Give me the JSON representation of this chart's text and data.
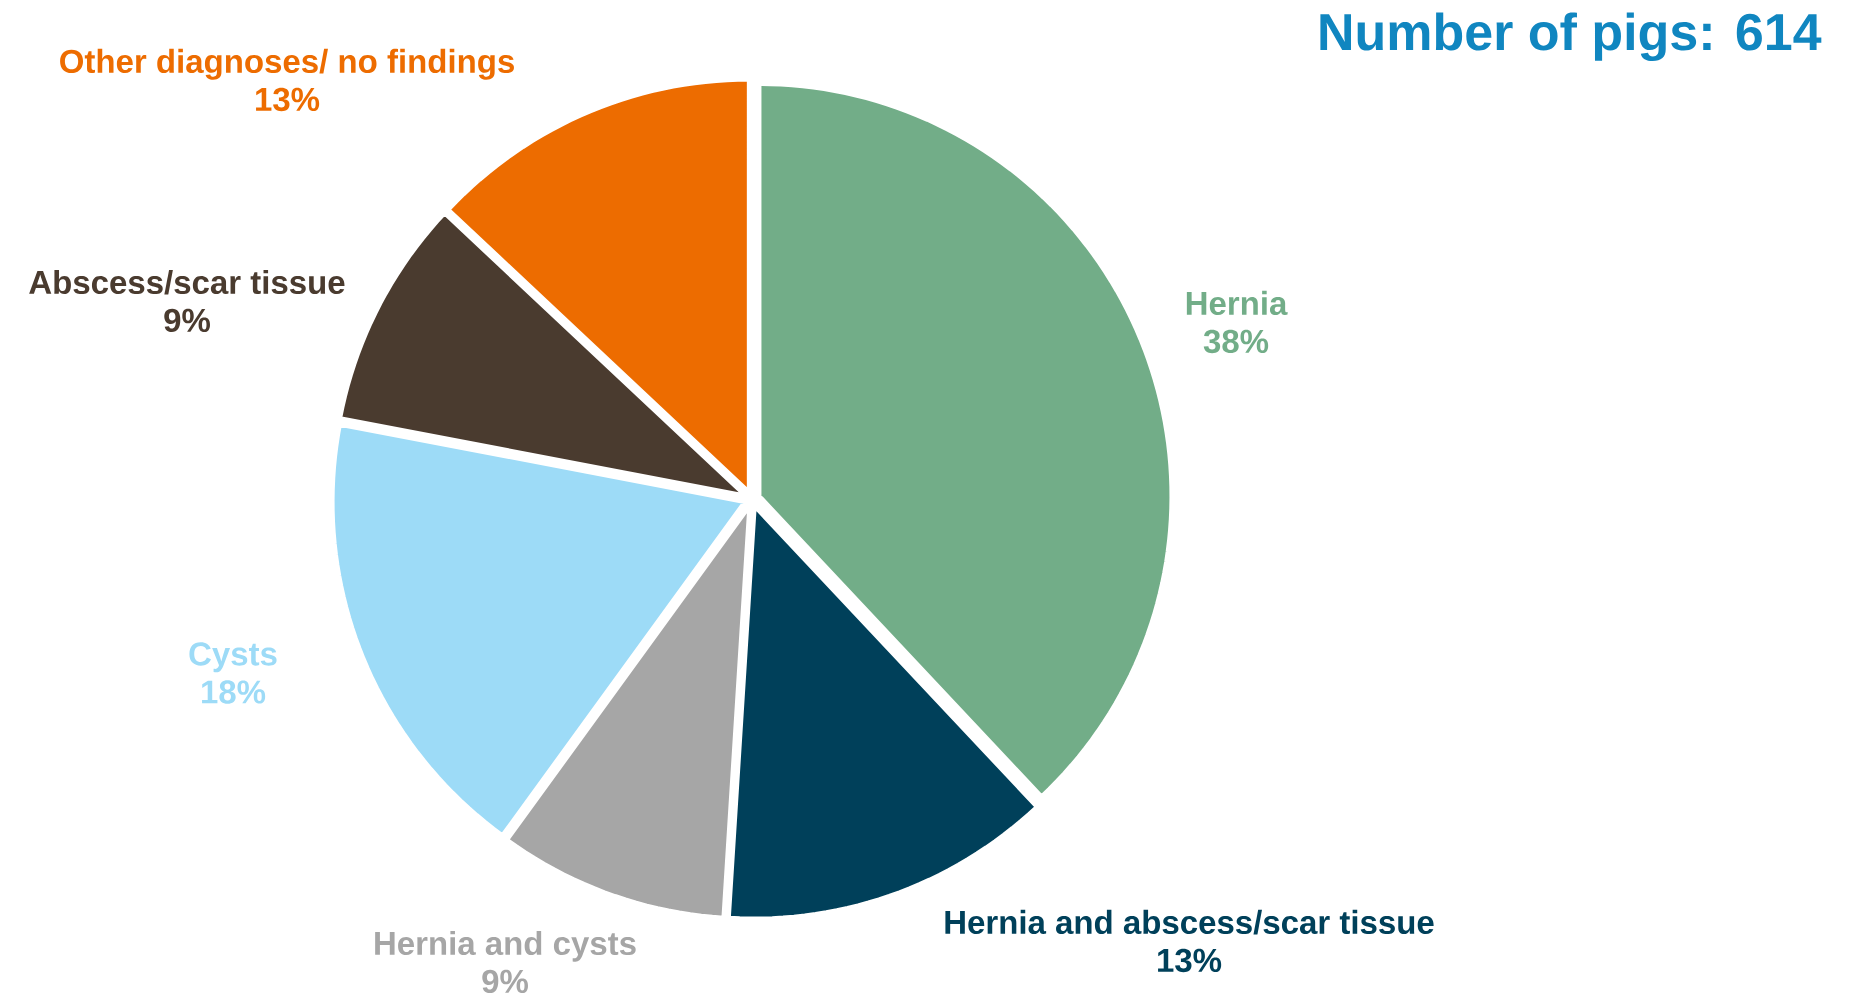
{
  "chart_data": {
    "type": "pie",
    "title": "Number of pigs: 614",
    "categories": [
      "Hernia",
      "Hernia and abscess/scar tissue",
      "Hernia and cysts",
      "Cysts",
      "Abscess/scar tissue",
      "Other diagnoses/ no findings"
    ],
    "values": [
      38,
      13,
      9,
      18,
      9,
      13
    ],
    "value_labels": [
      "38%",
      "13%",
      "9%",
      "18%",
      "9%",
      "13%"
    ],
    "colors": [
      "#72ad88",
      "#00405a",
      "#a6a6a6",
      "#9ddbf7",
      "#4a3b2f",
      "#ed6c00"
    ]
  }
}
